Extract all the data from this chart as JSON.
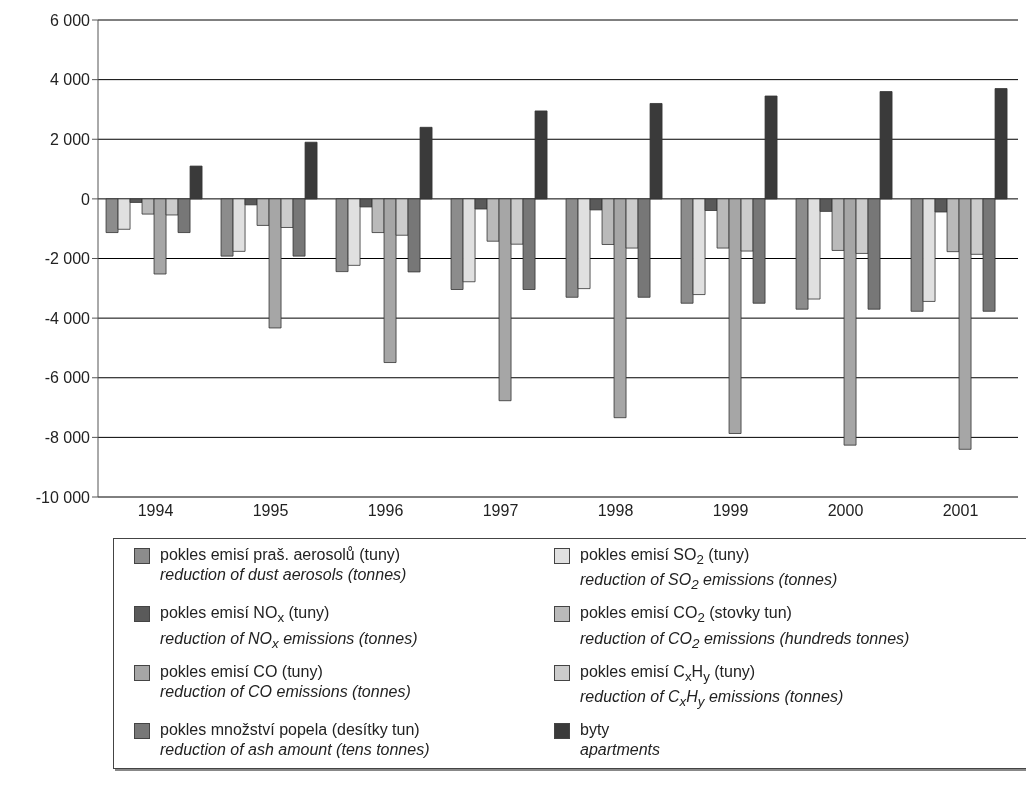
{
  "chart_data": {
    "type": "bar",
    "categories": [
      "1994",
      "1995",
      "1996",
      "1997",
      "1998",
      "1999",
      "2000",
      "2001"
    ],
    "series": [
      {
        "name": "pokles emisí praš. aerosolů (tuny)\nreduction of dust aerosols (tonnes)",
        "color": "#8c8c8c",
        "values": [
          -1130,
          -1920,
          -2440,
          -3040,
          -3300,
          -3500,
          -3700,
          -3770
        ]
      },
      {
        "name": "pokles emisí SO$_{2}$ (tuny)\nreduction of SO$_{2}$ emissions (tonnes)",
        "color": "#e0e0e0",
        "values": [
          -1020,
          -1760,
          -2230,
          -2780,
          -3010,
          -3210,
          -3360,
          -3440
        ]
      },
      {
        "name": "pokles emisí NO$_{x}$ (tuny)\nreduction of NO$_{x}$ emissions (tonnes)",
        "color": "#5a5a5a",
        "values": [
          -120,
          -200,
          -270,
          -340,
          -370,
          -390,
          -420,
          -440
        ]
      },
      {
        "name": "pokles emisí CO$_{2}$ (stovky tun)\nreduction of CO$_{2}$ emissions (hundreds tonnes)",
        "color": "#bababa",
        "values": [
          -510,
          -890,
          -1130,
          -1420,
          -1530,
          -1650,
          -1730,
          -1770
        ]
      },
      {
        "name": "pokles emisí CO (tuny)\nreduction of CO emissions (tonnes)",
        "color": "#a6a6a6",
        "values": [
          -2520,
          -4330,
          -5490,
          -6770,
          -7340,
          -7870,
          -8260,
          -8400
        ]
      },
      {
        "name": "pokles emisí C$_{x}$H$_{y}$ (tuny)\nreduction of C$_{x}$H$_{y}$ emissions (tonnes)",
        "color": "#cccccc",
        "values": [
          -540,
          -960,
          -1220,
          -1520,
          -1650,
          -1750,
          -1830,
          -1860
        ]
      },
      {
        "name": "pokles množství popela (desítky tun)\nreduction of ash amount (tens tonnes)",
        "color": "#777777",
        "values": [
          -1130,
          -1920,
          -2450,
          -3040,
          -3300,
          -3500,
          -3700,
          -3770
        ]
      },
      {
        "name": "byty\napartments",
        "color": "#3a3a3a",
        "values": [
          1100,
          1900,
          2400,
          2950,
          3200,
          3450,
          3600,
          3700
        ]
      }
    ],
    "ylim": [
      -10000,
      6000
    ],
    "yticks": [
      {
        "value": -10000,
        "label": "-10 000"
      },
      {
        "value": -8000,
        "label": "-8 000"
      },
      {
        "value": -6000,
        "label": "-6 000"
      },
      {
        "value": -4000,
        "label": "-4 000"
      },
      {
        "value": -2000,
        "label": "-2 000"
      },
      0,
      {
        "value": 2000,
        "label": "2 000"
      },
      {
        "value": 4000,
        "label": "4 000"
      },
      {
        "value": 6000,
        "label": "6 000"
      }
    ],
    "grid": "y",
    "legend": "bottom"
  }
}
